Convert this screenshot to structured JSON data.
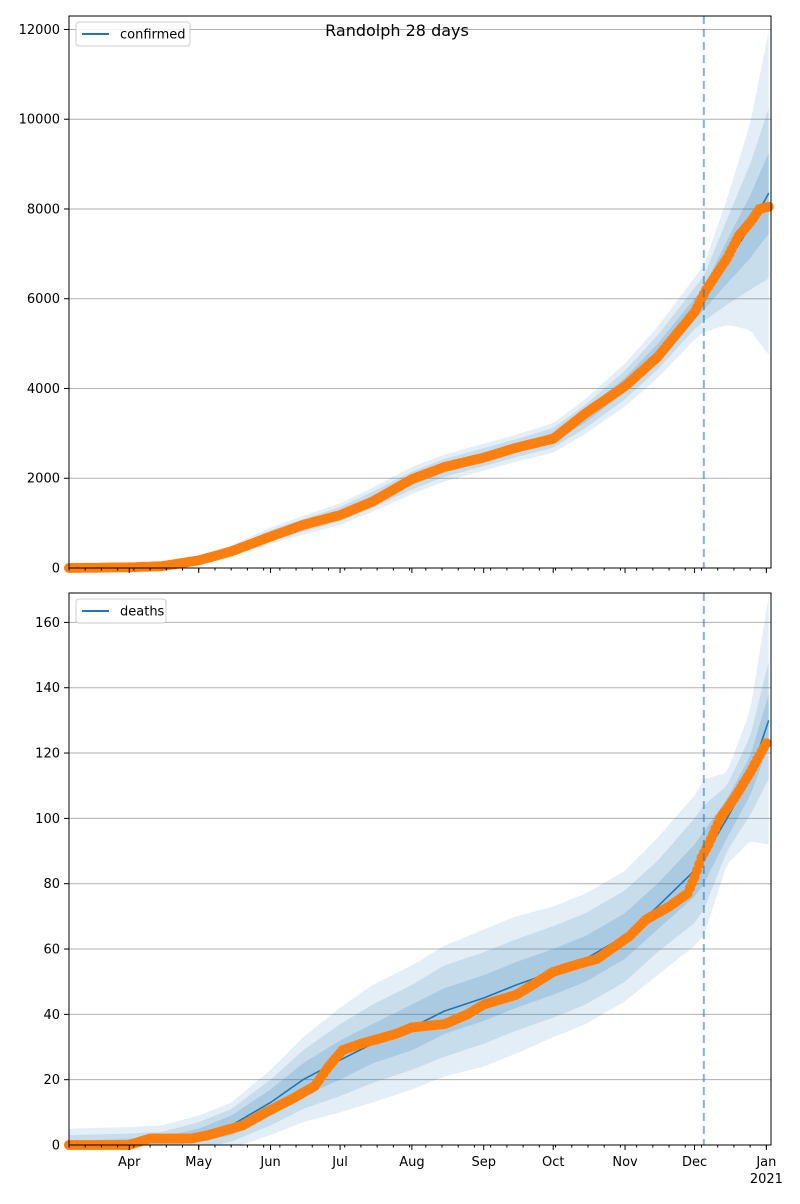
{
  "chart_data": [
    {
      "type": "line",
      "title": "Randolph 28 days",
      "xlabel": "",
      "ylabel": "",
      "ylim": [
        0,
        12300
      ],
      "yticks": [
        0,
        2000,
        4000,
        6000,
        8000,
        10000,
        12000
      ],
      "grid": "horizontal",
      "legend": "top-left",
      "forecast_start": "2020-12-05",
      "series": [
        {
          "name": "confirmed",
          "color": "#1f77b4",
          "points": [
            [
              "2020-03-06",
              0
            ],
            [
              "2020-04-01",
              10
            ],
            [
              "2020-04-15",
              40
            ],
            [
              "2020-05-01",
              150
            ],
            [
              "2020-05-15",
              380
            ],
            [
              "2020-06-01",
              720
            ],
            [
              "2020-06-15",
              950
            ],
            [
              "2020-07-01",
              1200
            ],
            [
              "2020-07-15",
              1520
            ],
            [
              "2020-08-01",
              1950
            ],
            [
              "2020-08-15",
              2230
            ],
            [
              "2020-09-01",
              2470
            ],
            [
              "2020-09-15",
              2670
            ],
            [
              "2020-10-01",
              2900
            ],
            [
              "2020-10-15",
              3380
            ],
            [
              "2020-11-01",
              4080
            ],
            [
              "2020-11-15",
              4800
            ],
            [
              "2020-12-01",
              5780
            ],
            [
              "2020-12-05",
              6000
            ],
            [
              "2020-12-15",
              6820
            ],
            [
              "2020-12-25",
              7600
            ],
            [
              "2021-01-02",
              8350
            ]
          ],
          "band_half_widths": [
            [
              0,
              0,
              0
            ],
            [
              10,
              20,
              30
            ],
            [
              20,
              40,
              60
            ],
            [
              30,
              60,
              90
            ],
            [
              40,
              80,
              120
            ],
            [
              60,
              120,
              180
            ],
            [
              70,
              140,
              210
            ],
            [
              80,
              160,
              240
            ],
            [
              90,
              180,
              270
            ],
            [
              100,
              200,
              300
            ],
            [
              100,
              200,
              300
            ],
            [
              100,
              200,
              300
            ],
            [
              100,
              200,
              300
            ],
            [
              110,
              220,
              330
            ],
            [
              130,
              260,
              390
            ],
            [
              160,
              320,
              480
            ],
            [
              190,
              380,
              570
            ],
            [
              230,
              460,
              690
            ],
            [
              250,
              500,
              750
            ],
            [
              480,
              950,
              1400
            ],
            [
              700,
              1400,
              2300
            ],
            [
              900,
              1900,
              3600
            ]
          ]
        },
        {
          "name": "",
          "type": "scatter",
          "color": "#ff7f0e",
          "points": [
            [
              "2020-03-06",
              0
            ],
            [
              "2020-04-01",
              15
            ],
            [
              "2020-04-15",
              40
            ],
            [
              "2020-05-01",
              170
            ],
            [
              "2020-05-15",
              370
            ],
            [
              "2020-06-01",
              700
            ],
            [
              "2020-06-15",
              960
            ],
            [
              "2020-07-01",
              1180
            ],
            [
              "2020-07-15",
              1480
            ],
            [
              "2020-08-01",
              1980
            ],
            [
              "2020-08-15",
              2250
            ],
            [
              "2020-09-01",
              2460
            ],
            [
              "2020-09-15",
              2680
            ],
            [
              "2020-10-01",
              2880
            ],
            [
              "2020-10-15",
              3450
            ],
            [
              "2020-11-01",
              4050
            ],
            [
              "2020-11-15",
              4700
            ],
            [
              "2020-12-01",
              5700
            ],
            [
              "2020-12-06",
              6200
            ],
            [
              "2020-12-15",
              6900
            ],
            [
              "2020-12-20",
              7400
            ],
            [
              "2020-12-25",
              7700
            ],
            [
              "2020-12-29",
              8000
            ],
            [
              "2021-01-02",
              8050
            ]
          ]
        }
      ]
    },
    {
      "type": "line",
      "title": "",
      "xlabel": "",
      "ylabel": "",
      "ylim": [
        0,
        169
      ],
      "yticks": [
        0,
        20,
        40,
        60,
        80,
        100,
        120,
        140,
        160
      ],
      "grid": "horizontal",
      "legend": "top-left",
      "forecast_start": "2020-12-05",
      "xticks": [
        "Apr",
        "May",
        "Jun",
        "Jul",
        "Aug",
        "Sep",
        "Oct",
        "Nov",
        "Dec",
        "Jan"
      ],
      "xtick_year": "2021",
      "series": [
        {
          "name": "deaths",
          "color": "#1f77b4",
          "points": [
            [
              "2020-03-06",
              0
            ],
            [
              "2020-04-01",
              0.5
            ],
            [
              "2020-04-15",
              1
            ],
            [
              "2020-05-01",
              3
            ],
            [
              "2020-05-15",
              6
            ],
            [
              "2020-06-01",
              13
            ],
            [
              "2020-06-15",
              20
            ],
            [
              "2020-07-01",
              26
            ],
            [
              "2020-07-15",
              31
            ],
            [
              "2020-08-01",
              36
            ],
            [
              "2020-08-15",
              41
            ],
            [
              "2020-09-01",
              45
            ],
            [
              "2020-09-15",
              49
            ],
            [
              "2020-10-01",
              53
            ],
            [
              "2020-10-15",
              57
            ],
            [
              "2020-11-01",
              64
            ],
            [
              "2020-11-15",
              73
            ],
            [
              "2020-12-01",
              84
            ],
            [
              "2020-12-05",
              88
            ],
            [
              "2020-12-15",
              100
            ],
            [
              "2020-12-25",
              113
            ],
            [
              "2021-01-02",
              130
            ]
          ],
          "band_half_widths": [
            [
              1,
              3,
              5
            ],
            [
              1.5,
              3,
              5
            ],
            [
              1.5,
              3,
              5
            ],
            [
              2,
              4,
              6
            ],
            [
              3,
              5,
              7
            ],
            [
              4,
              7,
              10
            ],
            [
              5,
              9,
              13
            ],
            [
              6,
              11,
              16
            ],
            [
              6,
              12,
              18
            ],
            [
              7,
              13,
              19
            ],
            [
              7,
              14,
              20
            ],
            [
              7,
              14,
              21
            ],
            [
              7,
              14,
              21
            ],
            [
              7,
              14,
              20
            ],
            [
              7,
              14,
              20
            ],
            [
              7,
              14,
              20
            ],
            [
              7,
              14,
              21
            ],
            [
              8,
              16,
              23
            ],
            [
              8,
              16,
              24
            ],
            [
              6,
              10,
              14
            ],
            [
              6,
              12,
              20
            ],
            [
              8,
              18,
              38
            ]
          ]
        },
        {
          "name": "",
          "type": "scatter",
          "color": "#ff7f0e",
          "points": [
            [
              "2020-03-06",
              0
            ],
            [
              "2020-04-01",
              0
            ],
            [
              "2020-04-10",
              2
            ],
            [
              "2020-04-28",
              2
            ],
            [
              "2020-05-05",
              3
            ],
            [
              "2020-05-15",
              5
            ],
            [
              "2020-05-20",
              6
            ],
            [
              "2020-05-30",
              10
            ],
            [
              "2020-06-10",
              14
            ],
            [
              "2020-06-20",
              18
            ],
            [
              "2020-06-26",
              24
            ],
            [
              "2020-07-02",
              29
            ],
            [
              "2020-07-10",
              31
            ],
            [
              "2020-07-25",
              34
            ],
            [
              "2020-08-01",
              36
            ],
            [
              "2020-08-15",
              37
            ],
            [
              "2020-08-25",
              40
            ],
            [
              "2020-09-01",
              43
            ],
            [
              "2020-09-15",
              46
            ],
            [
              "2020-09-22",
              49
            ],
            [
              "2020-10-01",
              53
            ],
            [
              "2020-10-10",
              55
            ],
            [
              "2020-10-20",
              57
            ],
            [
              "2020-10-28",
              61
            ],
            [
              "2020-11-03",
              64
            ],
            [
              "2020-11-10",
              69
            ],
            [
              "2020-11-20",
              73
            ],
            [
              "2020-11-28",
              77
            ],
            [
              "2020-12-01",
              82
            ],
            [
              "2020-12-04",
              88
            ],
            [
              "2020-12-07",
              92
            ],
            [
              "2020-12-12",
              100
            ],
            [
              "2020-12-18",
              106
            ],
            [
              "2020-12-25",
              114
            ],
            [
              "2020-12-28",
              118
            ],
            [
              "2021-01-01",
              123
            ]
          ]
        }
      ]
    }
  ]
}
